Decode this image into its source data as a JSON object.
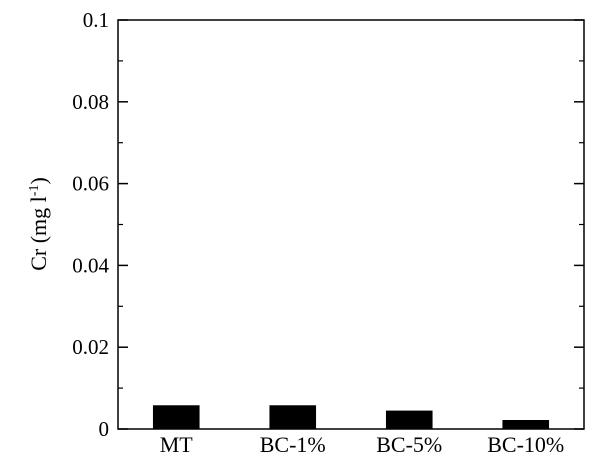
{
  "chart_data": {
    "type": "bar",
    "categories": [
      "MT",
      "BC-1%",
      "BC-5%",
      "BC-10%"
    ],
    "values": [
      0.0058,
      0.0058,
      0.0045,
      0.0022
    ],
    "ylabel_main": "Cr (mg l",
    "ylabel_sup": "-1",
    "ylabel_close": ")",
    "ylim": [
      0,
      0.1
    ],
    "y_ticks": [
      0,
      0.02,
      0.04,
      0.06,
      0.08,
      0.1
    ],
    "y_tick_labels": [
      "0",
      "0.02",
      "0.04",
      "0.06",
      "0.08",
      "0.1"
    ],
    "bar_color": "#000000",
    "grid": false,
    "legend": "none"
  }
}
